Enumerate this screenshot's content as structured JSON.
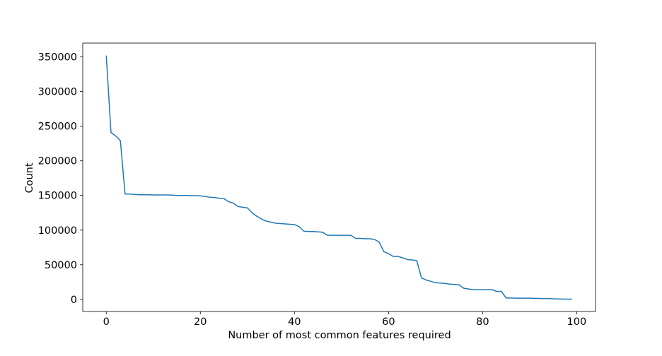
{
  "chart_data": {
    "type": "line",
    "title": "",
    "xlabel": "Number of most common features required",
    "ylabel": "Count",
    "xlim": [
      -5,
      104
    ],
    "ylim": [
      -17500,
      370000
    ],
    "xticks": [
      0,
      20,
      40,
      60,
      80,
      100
    ],
    "xtick_labels": [
      "0",
      "20",
      "40",
      "60",
      "80",
      "100"
    ],
    "yticks": [
      0,
      50000,
      100000,
      150000,
      200000,
      250000,
      300000,
      350000
    ],
    "ytick_labels": [
      "0",
      "50000",
      "100000",
      "150000",
      "200000",
      "250000",
      "300000",
      "350000"
    ],
    "grid": false,
    "legend": "none",
    "series": [
      {
        "color": "#1f77b4",
        "x": [
          0,
          1,
          2,
          3,
          4,
          5,
          6,
          7,
          8,
          9,
          10,
          11,
          12,
          13,
          14,
          15,
          16,
          17,
          18,
          19,
          20,
          21,
          22,
          23,
          24,
          25,
          26,
          27,
          28,
          29,
          30,
          31,
          32,
          33,
          34,
          35,
          36,
          37,
          38,
          39,
          40,
          41,
          42,
          43,
          44,
          45,
          46,
          47,
          48,
          49,
          50,
          51,
          52,
          53,
          54,
          55,
          56,
          57,
          58,
          59,
          60,
          61,
          62,
          63,
          64,
          65,
          66,
          67,
          68,
          69,
          70,
          71,
          72,
          73,
          74,
          75,
          76,
          77,
          78,
          79,
          80,
          81,
          82,
          83,
          84,
          85,
          86,
          87,
          88,
          89,
          90,
          91,
          92,
          93,
          94,
          95,
          96,
          97,
          98,
          99
        ],
        "values": [
          352000,
          241000,
          236000,
          229000,
          152000,
          152000,
          151500,
          151000,
          151000,
          151000,
          150800,
          150800,
          150800,
          150800,
          150500,
          150000,
          150000,
          150000,
          149800,
          149800,
          149500,
          148500,
          147500,
          147000,
          146000,
          145500,
          141000,
          139000,
          134000,
          133000,
          132000,
          125000,
          120000,
          116000,
          113000,
          111500,
          110000,
          109500,
          109000,
          108500,
          108000,
          105000,
          98500,
          98000,
          98000,
          97500,
          97000,
          92500,
          92500,
          92500,
          92500,
          92500,
          92500,
          88000,
          88000,
          87500,
          87500,
          86500,
          83000,
          69000,
          66000,
          62000,
          62000,
          60000,
          57500,
          57000,
          56000,
          31000,
          28000,
          26000,
          24000,
          23500,
          23000,
          22000,
          21500,
          21000,
          16000,
          15000,
          14000,
          14000,
          14000,
          14000,
          14000,
          11500,
          11500,
          2000,
          2000,
          1800,
          1800,
          1800,
          1800,
          1500,
          1300,
          1200,
          1200,
          800,
          600,
          500,
          400,
          300
        ]
      }
    ]
  }
}
